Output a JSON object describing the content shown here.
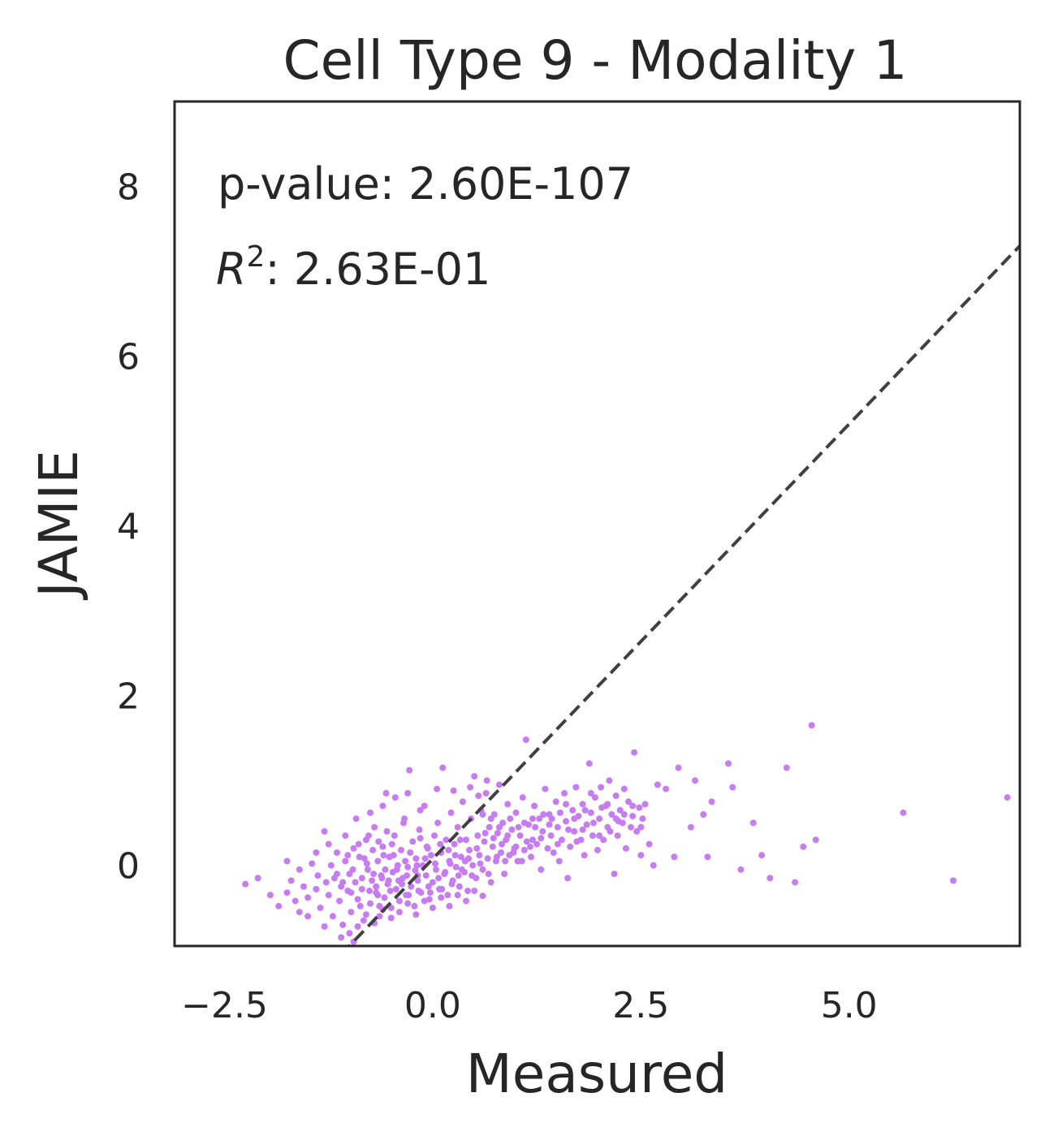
{
  "chart_data": {
    "type": "scatter",
    "title": "Cell Type  9 - Modality 1",
    "xlabel": "Measured",
    "ylabel": "JAMIE",
    "xlim": [
      -3.1,
      7.05
    ],
    "ylim": [
      -0.95,
      9.0
    ],
    "xticks": [
      -2.5,
      0.0,
      2.5,
      5.0
    ],
    "xtick_labels": [
      "−2.5",
      "0.0",
      "2.5",
      "5.0"
    ],
    "yticks": [
      0,
      2,
      4,
      6,
      8
    ],
    "ytick_labels": [
      "0",
      "2",
      "4",
      "6",
      "8"
    ],
    "grid": false,
    "point_color": "#c77cf2",
    "reference_line": {
      "style": "dashed",
      "color": "#404040",
      "x": [
        -1.1,
        7.05
      ],
      "y": [
        -1.05,
        7.3
      ]
    },
    "annotations": {
      "pvalue_label": "p-value: 2.60E-107",
      "r2_symbol": "R",
      "r2_sup": "2",
      "r2_value": ": 2.63E-01"
    },
    "points": [
      [
        -2.25,
        -0.22
      ],
      [
        -2.1,
        -0.15
      ],
      [
        -1.95,
        -0.35
      ],
      [
        -1.85,
        -0.48
      ],
      [
        -1.75,
        -0.32
      ],
      [
        -1.7,
        -0.18
      ],
      [
        -1.65,
        -0.42
      ],
      [
        -1.6,
        -0.05
      ],
      [
        -1.55,
        -0.25
      ],
      [
        -1.5,
        -0.38
      ],
      [
        -1.45,
        0.02
      ],
      [
        -1.4,
        -0.28
      ],
      [
        -1.38,
        -0.12
      ],
      [
        -1.35,
        -0.5
      ],
      [
        -1.3,
        0.4
      ],
      [
        -1.28,
        -0.2
      ],
      [
        -1.25,
        -0.35
      ],
      [
        -1.22,
        0.0
      ],
      [
        -1.2,
        -0.6
      ],
      [
        -1.18,
        -0.15
      ],
      [
        -1.15,
        0.15
      ],
      [
        -1.12,
        -0.42
      ],
      [
        -1.1,
        -0.25
      ],
      [
        -1.08,
        -0.7
      ],
      [
        -1.05,
        0.05
      ],
      [
        -1.02,
        -0.3
      ],
      [
        -1.0,
        -0.1
      ],
      [
        -0.98,
        -0.55
      ],
      [
        -0.95,
        0.2
      ],
      [
        -0.93,
        -0.2
      ],
      [
        -0.9,
        -0.4
      ],
      [
        -0.88,
        0.1
      ],
      [
        -0.85,
        -0.28
      ],
      [
        -0.83,
        -0.65
      ],
      [
        -0.8,
        0.3
      ],
      [
        -0.78,
        -0.05
      ],
      [
        -0.75,
        -0.45
      ],
      [
        -0.73,
        -0.18
      ],
      [
        -0.7,
        0.45
      ],
      [
        -0.68,
        -0.32
      ],
      [
        -0.66,
        0.05
      ],
      [
        -0.64,
        -0.6
      ],
      [
        -0.62,
        -0.12
      ],
      [
        -0.6,
        0.22
      ],
      [
        -0.58,
        -0.38
      ],
      [
        -0.56,
        0.85
      ],
      [
        -0.54,
        -0.22
      ],
      [
        -0.52,
        0.1
      ],
      [
        -0.5,
        -0.5
      ],
      [
        -0.48,
        -0.08
      ],
      [
        -0.46,
        0.35
      ],
      [
        -0.44,
        -0.28
      ],
      [
        -0.42,
        0.0
      ],
      [
        -0.4,
        -0.42
      ],
      [
        -0.38,
        0.18
      ],
      [
        -0.36,
        -0.15
      ],
      [
        -0.34,
        0.55
      ],
      [
        -0.32,
        -0.35
      ],
      [
        -0.3,
        -0.02
      ],
      [
        -0.28,
        1.12
      ],
      [
        -0.26,
        -0.25
      ],
      [
        -0.24,
        0.28
      ],
      [
        -0.22,
        -0.48
      ],
      [
        -0.2,
        0.08
      ],
      [
        -0.18,
        -0.18
      ],
      [
        -0.16,
        0.42
      ],
      [
        -0.14,
        -0.32
      ],
      [
        -0.12,
        0.0
      ],
      [
        -0.1,
        0.7
      ],
      [
        -0.08,
        -0.12
      ],
      [
        -0.06,
        0.2
      ],
      [
        -0.04,
        -0.4
      ],
      [
        -0.02,
        0.12
      ],
      [
        0.0,
        -0.2
      ],
      [
        0.02,
        0.35
      ],
      [
        0.04,
        -0.05
      ],
      [
        0.06,
        0.5
      ],
      [
        0.08,
        -0.28
      ],
      [
        0.1,
        0.15
      ],
      [
        0.12,
        1.15
      ],
      [
        0.14,
        -0.1
      ],
      [
        0.16,
        0.3
      ],
      [
        0.18,
        -0.35
      ],
      [
        0.2,
        0.05
      ],
      [
        0.22,
        0.62
      ],
      [
        0.24,
        -0.18
      ],
      [
        0.26,
        0.25
      ],
      [
        0.28,
        -0.02
      ],
      [
        0.3,
        0.45
      ],
      [
        0.32,
        -0.25
      ],
      [
        0.34,
        0.1
      ],
      [
        0.36,
        0.75
      ],
      [
        0.38,
        -0.08
      ],
      [
        0.4,
        0.3
      ],
      [
        0.42,
        -0.3
      ],
      [
        0.44,
        0.18
      ],
      [
        0.46,
        0.55
      ],
      [
        0.48,
        0.0
      ],
      [
        0.5,
        1.05
      ],
      [
        0.52,
        -0.15
      ],
      [
        0.54,
        0.35
      ],
      [
        0.56,
        0.12
      ],
      [
        0.58,
        0.65
      ],
      [
        0.6,
        -0.05
      ],
      [
        0.62,
        0.28
      ],
      [
        0.64,
        0.85
      ],
      [
        0.66,
        0.08
      ],
      [
        0.68,
        0.45
      ],
      [
        0.7,
        -0.2
      ],
      [
        0.72,
        0.22
      ],
      [
        0.74,
        0.6
      ],
      [
        0.76,
        0.05
      ],
      [
        0.78,
        0.38
      ],
      [
        0.8,
        0.95
      ],
      [
        0.82,
        0.15
      ],
      [
        0.84,
        0.5
      ],
      [
        0.86,
        -0.1
      ],
      [
        0.88,
        0.3
      ],
      [
        0.9,
        0.72
      ],
      [
        0.92,
        0.12
      ],
      [
        0.95,
        0.42
      ],
      [
        0.98,
        0.2
      ],
      [
        1.0,
        0.62
      ],
      [
        1.02,
        0.05
      ],
      [
        1.05,
        0.35
      ],
      [
        1.08,
        0.8
      ],
      [
        1.1,
        0.18
      ],
      [
        1.12,
        1.48
      ],
      [
        1.15,
        0.48
      ],
      [
        1.18,
        0.1
      ],
      [
        1.2,
        0.3
      ],
      [
        1.22,
        0.7
      ],
      [
        1.25,
        0.25
      ],
      [
        1.28,
        0.55
      ],
      [
        1.3,
        -0.05
      ],
      [
        1.32,
        0.4
      ],
      [
        1.35,
        0.9
      ],
      [
        1.38,
        0.2
      ],
      [
        1.4,
        0.6
      ],
      [
        1.42,
        0.35
      ],
      [
        1.45,
        0.15
      ],
      [
        1.48,
        0.75
      ],
      [
        1.5,
        0.45
      ],
      [
        1.52,
        0.05
      ],
      [
        1.55,
        0.3
      ],
      [
        1.58,
        0.85
      ],
      [
        1.6,
        0.52
      ],
      [
        1.62,
        -0.15
      ],
      [
        1.65,
        0.22
      ],
      [
        1.68,
        0.65
      ],
      [
        1.7,
        0.4
      ],
      [
        1.72,
        0.92
      ],
      [
        1.75,
        0.58
      ],
      [
        1.78,
        0.3
      ],
      [
        1.8,
        0.72
      ],
      [
        1.82,
        0.12
      ],
      [
        1.85,
        0.48
      ],
      [
        1.88,
        1.2
      ],
      [
        1.9,
        0.62
      ],
      [
        1.92,
        0.35
      ],
      [
        1.95,
        0.8
      ],
      [
        1.98,
        0.18
      ],
      [
        2.0,
        0.55
      ],
      [
        2.02,
        0.92
      ],
      [
        2.05,
        0.3
      ],
      [
        2.08,
        0.7
      ],
      [
        2.1,
        0.45
      ],
      [
        2.12,
        1.0
      ],
      [
        2.15,
        0.6
      ],
      [
        2.18,
        -0.1
      ],
      [
        2.2,
        0.82
      ],
      [
        2.22,
        0.35
      ],
      [
        2.25,
        0.65
      ],
      [
        2.28,
        0.5
      ],
      [
        2.3,
        0.9
      ],
      [
        2.32,
        0.2
      ],
      [
        2.35,
        0.75
      ],
      [
        2.38,
        0.45
      ],
      [
        2.4,
        0.58
      ],
      [
        2.42,
        1.33
      ],
      [
        2.45,
        0.4
      ],
      [
        2.48,
        0.68
      ],
      [
        2.5,
        0.12
      ],
      [
        2.52,
        0.55
      ],
      [
        2.55,
        0.72
      ],
      [
        2.6,
        0.25
      ],
      [
        2.65,
        0.0
      ],
      [
        2.7,
        0.95
      ],
      [
        2.8,
        0.9
      ],
      [
        2.9,
        0.1
      ],
      [
        2.95,
        1.15
      ],
      [
        3.1,
        0.45
      ],
      [
        3.15,
        1.0
      ],
      [
        3.25,
        0.6
      ],
      [
        3.3,
        0.1
      ],
      [
        3.35,
        0.75
      ],
      [
        3.55,
        1.2
      ],
      [
        3.6,
        0.92
      ],
      [
        3.7,
        -0.05
      ],
      [
        3.85,
        0.5
      ],
      [
        3.95,
        0.12
      ],
      [
        4.05,
        -0.15
      ],
      [
        4.25,
        1.15
      ],
      [
        4.35,
        -0.2
      ],
      [
        4.45,
        0.22
      ],
      [
        4.55,
        1.65
      ],
      [
        4.6,
        0.3
      ],
      [
        5.65,
        0.62
      ],
      [
        6.25,
        -0.18
      ],
      [
        6.9,
        0.8
      ],
      [
        -1.0,
        -0.8
      ],
      [
        -0.9,
        -0.72
      ],
      [
        -0.8,
        -0.58
      ],
      [
        -0.7,
        -0.68
      ],
      [
        -0.6,
        -0.52
      ],
      [
        -0.5,
        -0.62
      ],
      [
        -0.4,
        -0.55
      ],
      [
        -0.3,
        -0.45
      ],
      [
        -0.2,
        -0.58
      ],
      [
        -0.1,
        -0.42
      ],
      [
        0.0,
        -0.5
      ],
      [
        0.1,
        -0.38
      ],
      [
        0.2,
        -0.48
      ],
      [
        0.3,
        -0.35
      ],
      [
        0.4,
        -0.42
      ],
      [
        0.5,
        -0.3
      ],
      [
        0.6,
        -0.36
      ],
      [
        -1.3,
        -0.72
      ],
      [
        -1.1,
        -0.85
      ],
      [
        -0.95,
        -0.9
      ],
      [
        -1.5,
        -0.6
      ],
      [
        -1.6,
        -0.55
      ],
      [
        -1.75,
        0.05
      ],
      [
        -1.4,
        0.15
      ],
      [
        -1.25,
        0.25
      ],
      [
        -1.05,
        0.35
      ],
      [
        -0.92,
        0.55
      ],
      [
        -0.75,
        0.62
      ],
      [
        -0.6,
        0.7
      ],
      [
        -0.45,
        0.8
      ],
      [
        -0.3,
        0.85
      ],
      [
        -0.15,
        0.65
      ],
      [
        0.05,
        0.9
      ],
      [
        0.25,
        0.88
      ],
      [
        0.45,
        0.92
      ],
      [
        0.65,
        1.0
      ],
      [
        0.55,
        0.82
      ],
      [
        -0.55,
        0.4
      ],
      [
        -0.35,
        0.5
      ],
      [
        -0.15,
        0.32
      ],
      [
        -0.68,
        -0.25
      ],
      [
        -0.57,
        -0.05
      ],
      [
        -0.47,
        0.12
      ],
      [
        -0.33,
        0.05
      ],
      [
        -0.21,
        -0.06
      ],
      [
        -0.09,
        0.08
      ],
      [
        0.03,
        0.02
      ],
      [
        0.15,
        -0.08
      ],
      [
        0.27,
        0.12
      ],
      [
        0.39,
        0.05
      ],
      [
        -0.72,
        0.18
      ],
      [
        -0.61,
        -0.15
      ],
      [
        -0.49,
        0.25
      ],
      [
        -0.37,
        -0.22
      ],
      [
        -0.27,
        0.15
      ],
      [
        -0.17,
        -0.3
      ],
      [
        -0.07,
        0.22
      ],
      [
        0.07,
        -0.15
      ],
      [
        0.19,
        0.18
      ],
      [
        0.31,
        -0.12
      ],
      [
        -0.85,
        -0.15
      ],
      [
        -0.79,
        0.02
      ],
      [
        -0.66,
        -0.35
      ],
      [
        -0.53,
        -0.18
      ],
      [
        -0.43,
        -0.05
      ],
      [
        -0.31,
        -0.12
      ],
      [
        -0.19,
        0.0
      ],
      [
        -0.05,
        -0.25
      ],
      [
        0.09,
        0.25
      ],
      [
        0.21,
        0.02
      ],
      [
        0.33,
        0.3
      ],
      [
        0.43,
        0.08
      ],
      [
        0.53,
        0.2
      ],
      [
        0.63,
        0.38
      ],
      [
        0.73,
        0.32
      ],
      [
        0.83,
        0.25
      ],
      [
        0.93,
        0.55
      ],
      [
        1.03,
        0.45
      ],
      [
        1.13,
        0.28
      ],
      [
        1.23,
        0.45
      ],
      [
        1.33,
        0.6
      ],
      [
        1.43,
        0.55
      ],
      [
        1.53,
        0.62
      ],
      [
        1.63,
        0.42
      ],
      [
        1.73,
        0.28
      ],
      [
        1.83,
        0.65
      ],
      [
        1.93,
        0.5
      ],
      [
        2.03,
        0.68
      ],
      [
        2.13,
        0.4
      ],
      [
        2.23,
        0.52
      ],
      [
        -0.98,
        -0.32
      ],
      [
        -0.87,
        -0.48
      ],
      [
        -0.76,
        -0.3
      ],
      [
        -0.64,
        -0.48
      ],
      [
        -0.51,
        -0.3
      ],
      [
        -0.41,
        -0.18
      ],
      [
        -0.29,
        -0.35
      ],
      [
        -0.18,
        -0.12
      ],
      [
        -0.03,
        -0.32
      ],
      [
        0.11,
        -0.28
      ],
      [
        0.23,
        -0.22
      ],
      [
        0.35,
        -0.05
      ],
      [
        0.47,
        -0.12
      ],
      [
        0.57,
        0.02
      ],
      [
        0.67,
        -0.1
      ],
      [
        0.77,
        0.1
      ],
      [
        0.87,
        0.05
      ],
      [
        0.97,
        0.15
      ],
      [
        1.07,
        0.05
      ],
      [
        1.17,
        0.22
      ],
      [
        -1.15,
        -0.1
      ],
      [
        -1.08,
        -0.2
      ],
      [
        -1.02,
        0.12
      ],
      [
        -0.96,
        -0.05
      ],
      [
        -0.89,
        0.25
      ],
      [
        -0.82,
        0.08
      ],
      [
        -0.77,
        0.35
      ],
      [
        -0.71,
        -0.1
      ],
      [
        -0.65,
        0.28
      ],
      [
        -0.59,
        0.12
      ],
      [
        0.7,
        0.55
      ],
      [
        0.8,
        0.45
      ],
      [
        0.9,
        0.35
      ],
      [
        1.0,
        0.22
      ],
      [
        1.1,
        0.5
      ],
      [
        1.2,
        0.55
      ],
      [
        1.3,
        0.32
      ],
      [
        1.4,
        0.48
      ],
      [
        1.5,
        0.25
      ],
      [
        1.6,
        0.72
      ],
      [
        1.7,
        0.55
      ],
      [
        1.8,
        0.42
      ],
      [
        1.9,
        0.85
      ],
      [
        2.0,
        0.35
      ],
      [
        2.1,
        0.72
      ],
      [
        2.2,
        0.55
      ],
      [
        2.3,
        0.6
      ],
      [
        2.4,
        0.7
      ],
      [
        2.5,
        0.45
      ],
      [
        0.6,
        0.6
      ]
    ]
  }
}
